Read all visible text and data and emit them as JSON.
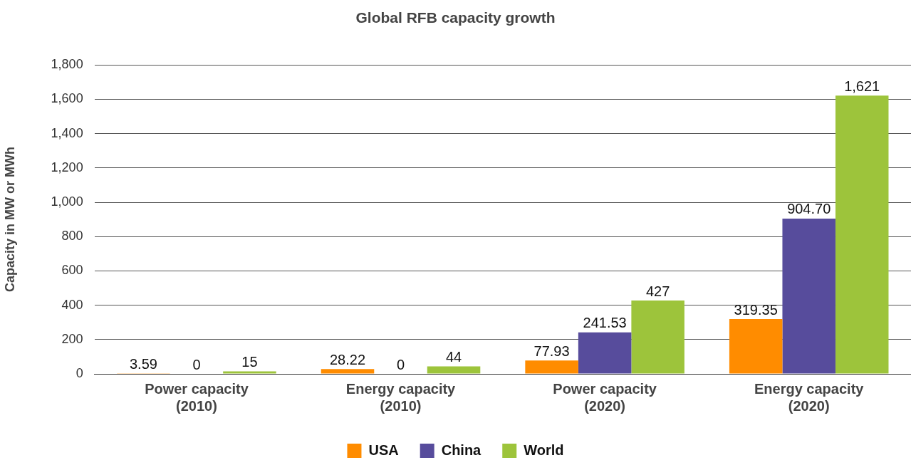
{
  "chart_data": {
    "type": "bar",
    "title": "Global RFB capacity growth",
    "ylabel": "Capacity in MW or MWh",
    "categories": [
      "Power capacity (2010)",
      "Energy capacity (2010)",
      "Power capacity (2020)",
      "Energy capacity (2020)"
    ],
    "series": [
      {
        "name": "USA",
        "color": "#ff8c00",
        "values": [
          3.59,
          28.22,
          77.93,
          319.35
        ],
        "value_labels": [
          "3.59",
          "28.22",
          "77.93",
          "319.35"
        ]
      },
      {
        "name": "China",
        "color": "#574c9c",
        "values": [
          0,
          0,
          241.53,
          904.7
        ],
        "value_labels": [
          "0",
          "0",
          "241.53",
          "904.70"
        ]
      },
      {
        "name": "World",
        "color": "#9dc43b",
        "values": [
          15,
          44,
          427,
          1621
        ],
        "value_labels": [
          "15",
          "44",
          "427",
          "1,621"
        ]
      }
    ],
    "ylim": [
      0,
      1800
    ],
    "yticks": [
      0,
      200,
      400,
      600,
      800,
      {
        "value": 1000,
        "label": "1,000"
      },
      {
        "value": 1200,
        "label": "1,200"
      },
      {
        "value": 1400,
        "label": "1,400"
      },
      {
        "value": 1600,
        "label": "1,600"
      },
      {
        "value": 1800,
        "label": "1,800"
      }
    ],
    "grid": "y",
    "legend": "bottom"
  }
}
